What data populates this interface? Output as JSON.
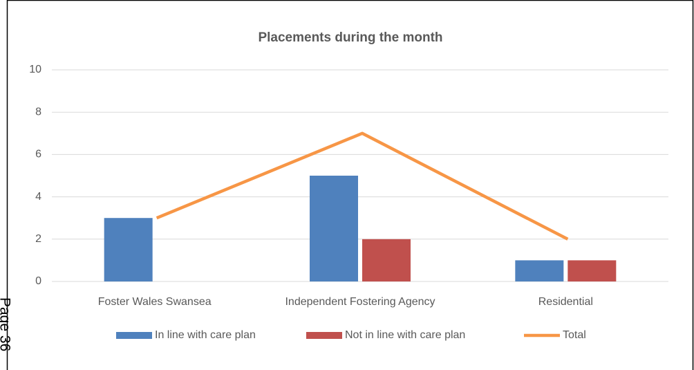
{
  "chart_data": {
    "type": "bar",
    "title": "Placements during the month",
    "categories": [
      "Foster Wales Swansea",
      "Independent Fostering Agency",
      "Residential"
    ],
    "series": [
      {
        "name": "In line with care plan",
        "color": "#4f81bd",
        "values": [
          3,
          5,
          1
        ]
      },
      {
        "name": "Not in line with care plan",
        "color": "#c0504d",
        "values": [
          0,
          2,
          1
        ]
      },
      {
        "name": "Total",
        "color": "#f79646",
        "type": "line",
        "values": [
          3,
          7,
          2
        ]
      }
    ],
    "ylim": [
      0,
      10
    ],
    "yticks": [
      0,
      2,
      4,
      6,
      8,
      10
    ],
    "grid": true,
    "legend": "bottom"
  },
  "page_label": "Page 36"
}
